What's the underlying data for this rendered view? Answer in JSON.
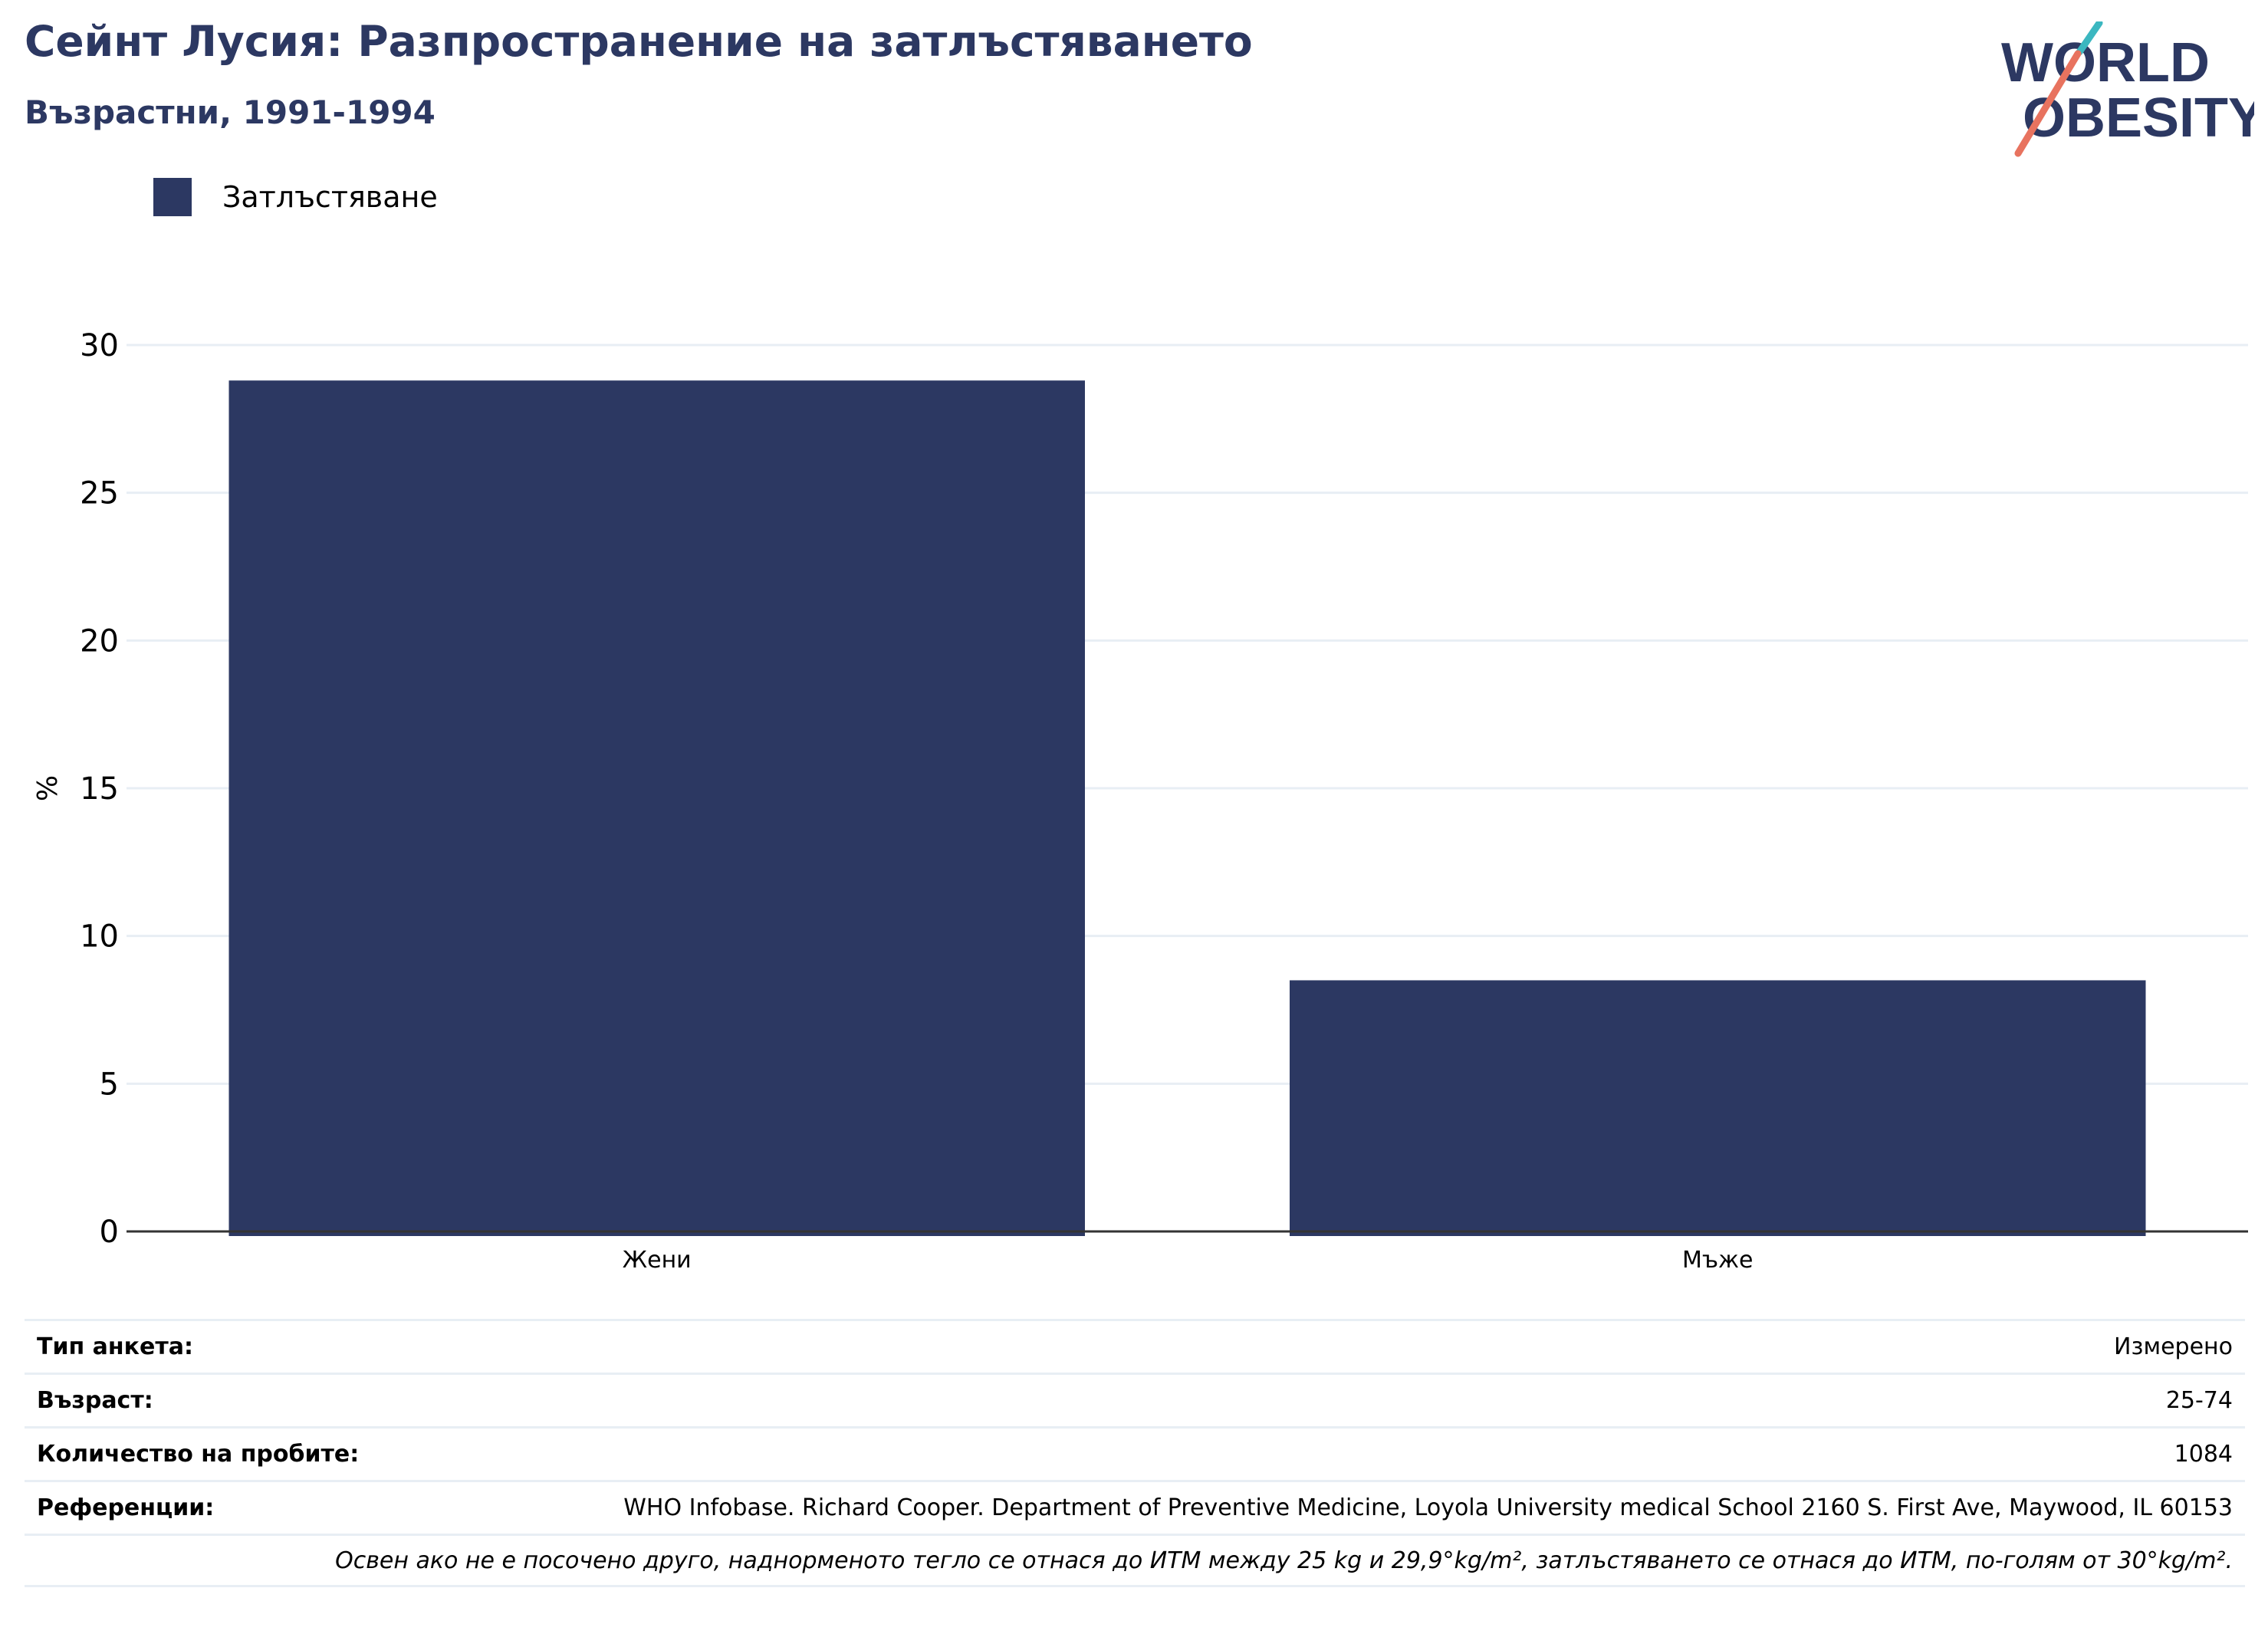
{
  "header": {
    "title": "Сейнт Лусия: Разпространение на затлъстяването",
    "subtitle": "Възрастни, 1991-1994"
  },
  "logo": {
    "line1": "WORLD",
    "line2": "OBESITY",
    "colors": {
      "text": "#2c3862",
      "slash_teal": "#3bb7c0",
      "slash_coral": "#e8735f"
    }
  },
  "colors": {
    "bar": "#2c3862",
    "grid": "#e8eef4",
    "axis": "#333333"
  },
  "chart_data": {
    "type": "bar",
    "title": "Сейнт Лусия: Разпространение на затлъстяването",
    "subtitle": "Възрастни, 1991-1994",
    "categories": [
      "Жени",
      "Мъже"
    ],
    "series": [
      {
        "name": "Затлъстяване",
        "values": [
          28.8,
          8.5
        ]
      }
    ],
    "ylabel": "%",
    "xlabel": "",
    "ylim": [
      0,
      30
    ],
    "yticks": [
      "0",
      "5",
      "10",
      "15",
      "20",
      "25",
      "30"
    ],
    "grid": true,
    "legend": "top-left"
  },
  "info": {
    "rows": [
      {
        "label": "Тип анкета:",
        "value": "Измерено"
      },
      {
        "label": "Възраст:",
        "value": "25-74"
      },
      {
        "label": "Количество на пробите:",
        "value": "1084"
      },
      {
        "label": "Референции:",
        "value": "WHO Infobase. Richard Cooper. Department of Preventive Medicine, Loyola University medical School 2160 S. First Ave, Maywood, IL 60153"
      }
    ],
    "note": "Освен ако не е посочено друго, наднорменото тегло се отнася до ИТМ между 25 kg и 29,9°kg/m², затлъстяването се отнася до ИТМ, по-голям от 30°kg/m²."
  }
}
